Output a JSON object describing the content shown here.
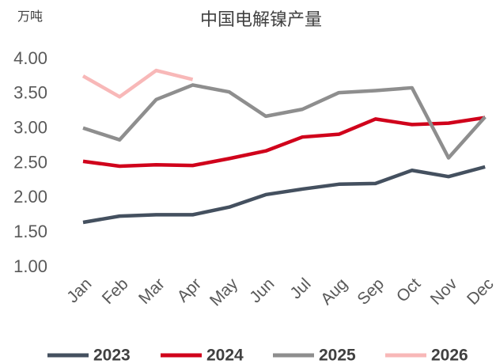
{
  "chart_data": {
    "type": "line",
    "title": "中国电解镍产量",
    "y_label": "万吨",
    "categories": [
      "Jan",
      "Feb",
      "Mar",
      "Apr",
      "May",
      "Jun",
      "Jul",
      "Aug",
      "Sep",
      "Oct",
      "Nov",
      "Dec"
    ],
    "series": [
      {
        "name": "2023",
        "color": "#44505f",
        "values": [
          1.65,
          1.74,
          1.76,
          1.76,
          1.87,
          2.05,
          2.13,
          2.2,
          2.21,
          2.4,
          2.31,
          2.45
        ]
      },
      {
        "name": "2024",
        "color": "#d0021b",
        "values": [
          2.53,
          2.46,
          2.48,
          2.47,
          2.57,
          2.68,
          2.88,
          2.92,
          3.14,
          3.06,
          3.08,
          3.16
        ]
      },
      {
        "name": "2025",
        "color": "#8e8e8e",
        "values": [
          3.01,
          2.84,
          3.42,
          3.63,
          3.53,
          3.18,
          3.28,
          3.52,
          3.55,
          3.59,
          2.58,
          3.17
        ]
      },
      {
        "name": "2026",
        "color": "#f8b8b8",
        "values": [
          3.76,
          3.46,
          3.84,
          3.71,
          null,
          null,
          null,
          null,
          null,
          null,
          null,
          null
        ]
      }
    ],
    "ylim": [
      1,
      4
    ],
    "yticks": [
      {
        "value": 1,
        "label": "1.00"
      },
      {
        "value": 1.5,
        "label": "1.50"
      },
      {
        "value": 2,
        "label": "2.00"
      },
      {
        "value": 2.5,
        "label": "2.50"
      },
      {
        "value": 3,
        "label": "3.00"
      },
      {
        "value": 3.5,
        "label": "3.50"
      },
      {
        "value": 4,
        "label": "4.00"
      }
    ],
    "grid": false,
    "legend": "bottom"
  }
}
